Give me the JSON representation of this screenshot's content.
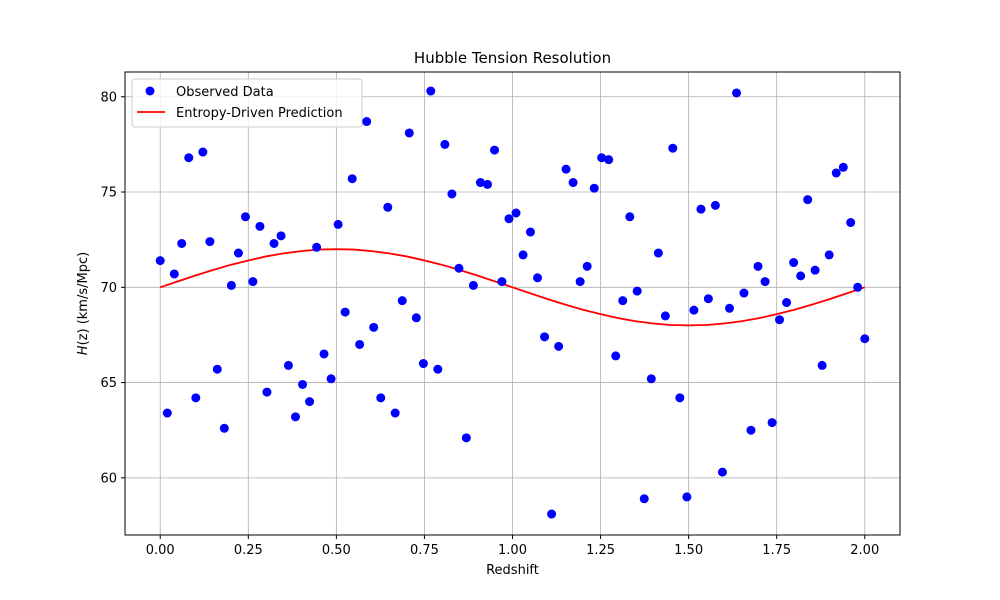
{
  "chart_data": {
    "type": "scatter",
    "title": "Hubble Tension Resolution",
    "xlabel": "Redshift",
    "ylabel_var": "H",
    "ylabel_rest": "(z) (km/s/Mpc)",
    "xlim": [
      -0.1,
      2.1
    ],
    "ylim": [
      57.0,
      81.3
    ],
    "xticks": [
      0.0,
      0.25,
      0.5,
      0.75,
      1.0,
      1.25,
      1.5,
      1.75,
      2.0
    ],
    "xtick_labels": [
      "0.00",
      "0.25",
      "0.50",
      "0.75",
      "1.00",
      "1.25",
      "1.50",
      "1.75",
      "2.00"
    ],
    "yticks": [
      60,
      65,
      70,
      75,
      80
    ],
    "ytick_labels": [
      "60",
      "65",
      "70",
      "75",
      "80"
    ],
    "grid": true,
    "legend_placement": "top-left",
    "series": [
      {
        "name": "Observed Data",
        "kind": "scatter",
        "color": "#0000ff",
        "x": [
          0.0,
          0.02,
          0.04,
          0.061,
          0.081,
          0.101,
          0.121,
          0.141,
          0.162,
          0.182,
          0.202,
          0.222,
          0.242,
          0.263,
          0.283,
          0.303,
          0.323,
          0.343,
          0.364,
          0.384,
          0.404,
          0.424,
          0.444,
          0.465,
          0.485,
          0.505,
          0.525,
          0.545,
          0.566,
          0.586,
          0.606,
          0.626,
          0.646,
          0.667,
          0.687,
          0.707,
          0.727,
          0.747,
          0.768,
          0.788,
          0.808,
          0.828,
          0.848,
          0.869,
          0.889,
          0.909,
          0.929,
          0.949,
          0.97,
          0.99,
          1.01,
          1.03,
          1.051,
          1.071,
          1.091,
          1.111,
          1.131,
          1.152,
          1.172,
          1.192,
          1.212,
          1.232,
          1.253,
          1.273,
          1.293,
          1.313,
          1.333,
          1.354,
          1.374,
          1.394,
          1.414,
          1.434,
          1.455,
          1.475,
          1.495,
          1.515,
          1.535,
          1.556,
          1.576,
          1.596,
          1.616,
          1.636,
          1.657,
          1.677,
          1.697,
          1.717,
          1.737,
          1.758,
          1.778,
          1.798,
          1.818,
          1.838,
          1.859,
          1.879,
          1.899,
          1.919,
          1.939,
          1.96,
          1.98,
          2.0
        ],
        "y": [
          71.4,
          63.4,
          70.7,
          72.3,
          76.8,
          64.2,
          77.1,
          72.4,
          65.7,
          62.6,
          70.1,
          71.8,
          73.7,
          70.3,
          73.2,
          64.5,
          72.3,
          72.7,
          65.9,
          63.2,
          64.9,
          64.0,
          72.1,
          66.5,
          65.2,
          73.3,
          68.7,
          75.7,
          67.0,
          78.7,
          67.9,
          64.2,
          74.2,
          63.4,
          69.3,
          78.1,
          68.4,
          66.0,
          80.3,
          65.7,
          77.5,
          74.9,
          71.0,
          62.1,
          70.1,
          75.5,
          75.4,
          77.2,
          70.3,
          73.6,
          73.9,
          71.7,
          72.9,
          70.5,
          67.4,
          58.1,
          66.9,
          76.2,
          75.5,
          70.3,
          71.1,
          75.2,
          76.8,
          76.7,
          66.4,
          69.3,
          73.7,
          69.8,
          58.9,
          65.2,
          71.8,
          68.5,
          77.3,
          64.2,
          59.0,
          68.8,
          74.1,
          69.4,
          74.3,
          60.3,
          68.9,
          80.2,
          69.7,
          62.5,
          71.1,
          70.3,
          62.9,
          68.3,
          69.2,
          71.3,
          70.6,
          74.6,
          70.9,
          65.9,
          71.7,
          76.0,
          76.3,
          73.4,
          70.0,
          67.3
        ]
      },
      {
        "name": "Entropy-Driven Prediction",
        "kind": "line",
        "color": "#ff0000",
        "x": [
          0.0,
          0.05,
          0.1,
          0.15,
          0.2,
          0.25,
          0.3,
          0.35,
          0.4,
          0.45,
          0.5,
          0.55,
          0.6,
          0.65,
          0.7,
          0.75,
          0.8,
          0.85,
          0.9,
          0.95,
          1.0,
          1.05,
          1.1,
          1.15,
          1.2,
          1.25,
          1.3,
          1.35,
          1.4,
          1.45,
          1.5,
          1.55,
          1.6,
          1.65,
          1.7,
          1.75,
          1.8,
          1.85,
          1.9,
          1.95,
          2.0
        ],
        "y": [
          70.0,
          70.31,
          70.62,
          70.91,
          71.18,
          71.41,
          71.62,
          71.78,
          71.9,
          71.98,
          72.0,
          71.98,
          71.9,
          71.78,
          71.62,
          71.41,
          71.18,
          70.91,
          70.62,
          70.31,
          70.0,
          69.69,
          69.38,
          69.09,
          68.82,
          68.59,
          68.38,
          68.22,
          68.1,
          68.02,
          68.0,
          68.02,
          68.1,
          68.22,
          68.38,
          68.59,
          68.82,
          69.09,
          69.38,
          69.69,
          70.0
        ]
      }
    ]
  }
}
